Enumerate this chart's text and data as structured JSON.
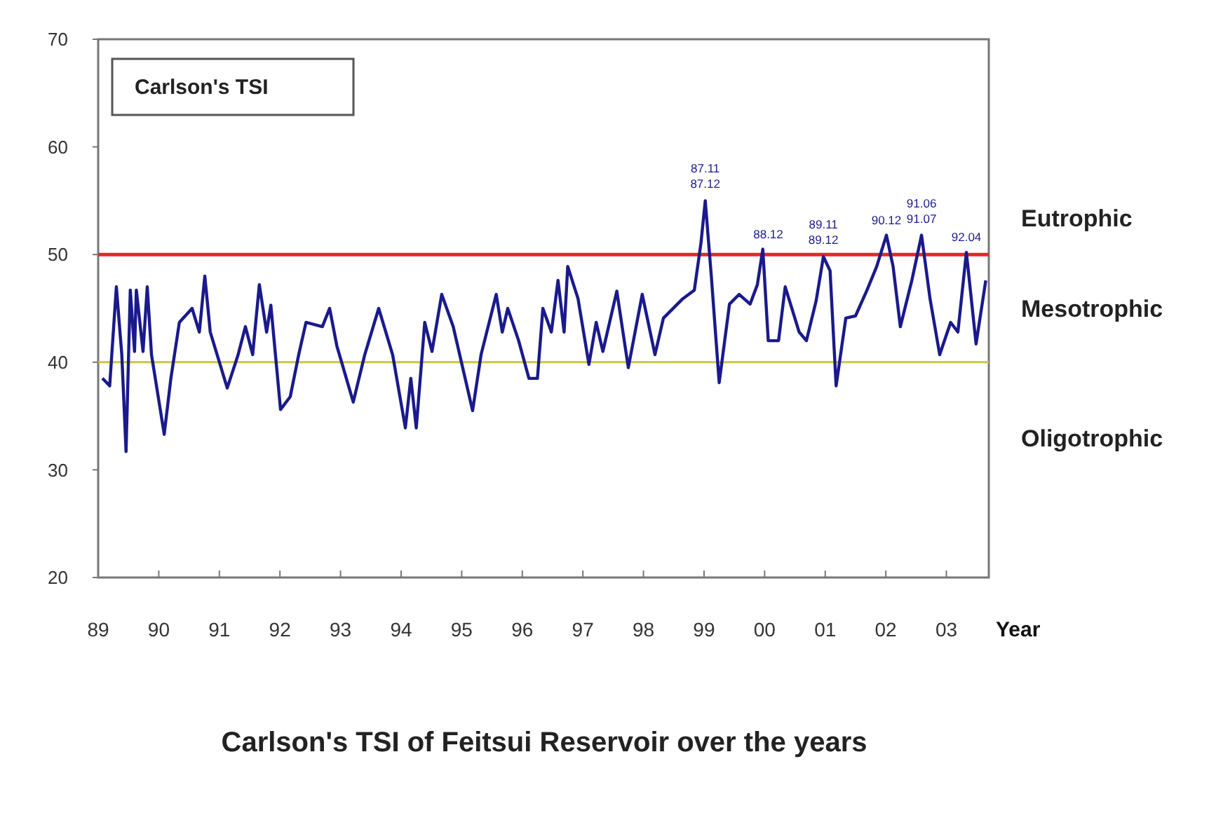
{
  "chart_data": {
    "type": "line",
    "title": "Carlson's TSI of Feitsui Reservoir over the years",
    "subtitle": "Carlson's TSI",
    "xlabel": "Year",
    "xlim": [
      1989,
      2003.7
    ],
    "ylim": [
      20,
      70
    ],
    "xticks": [
      {
        "value": 1989,
        "label": "89"
      },
      {
        "value": 1990,
        "label": "90"
      },
      {
        "value": 1991,
        "label": "91"
      },
      {
        "value": 1992,
        "label": "92"
      },
      {
        "value": 1993,
        "label": "93"
      },
      {
        "value": 1994,
        "label": "94"
      },
      {
        "value": 1995,
        "label": "95"
      },
      {
        "value": 1996,
        "label": "96"
      },
      {
        "value": 1997,
        "label": "97"
      },
      {
        "value": 1998,
        "label": "98"
      },
      {
        "value": 1999,
        "label": "99"
      },
      {
        "value": 2000,
        "label": "00"
      },
      {
        "value": 2001,
        "label": "01"
      },
      {
        "value": 2002,
        "label": "02"
      },
      {
        "value": 2003,
        "label": "03"
      }
    ],
    "yticks": [
      20,
      30,
      40,
      50,
      60,
      70
    ],
    "grid": false,
    "marker": "none",
    "line_style": "solid",
    "series": [
      {
        "color": "#1a1a8c",
        "x": [
          1989.07,
          1989.19,
          1989.3,
          1989.39,
          1989.46,
          1989.53,
          1989.6,
          1989.63,
          1989.74,
          1989.81,
          1989.88,
          1990.09,
          1990.2,
          1990.34,
          1990.55,
          1990.67,
          1990.76,
          1990.85,
          1991.13,
          1991.31,
          1991.43,
          1991.55,
          1991.66,
          1991.78,
          1991.85,
          1992.01,
          1992.17,
          1992.31,
          1992.43,
          1992.7,
          1992.82,
          1992.94,
          1993.21,
          1993.4,
          1993.63,
          1993.86,
          1994.07,
          1994.16,
          1994.25,
          1994.39,
          1994.51,
          1994.67,
          1994.86,
          1995.18,
          1995.32,
          1995.57,
          1995.67,
          1995.76,
          1995.94,
          1996.11,
          1996.25,
          1996.34,
          1996.48,
          1996.59,
          1996.69,
          1996.75,
          1996.92,
          1997.1,
          1997.22,
          1997.33,
          1997.56,
          1997.75,
          1997.98,
          1998.19,
          1998.33,
          1998.65,
          1998.84,
          1998.95,
          1999.02,
          1999.12,
          1999.25,
          1999.42,
          1999.58,
          1999.76,
          1999.88,
          1999.97,
          2000.06,
          2000.23,
          2000.34,
          2000.57,
          2000.69,
          2000.85,
          2000.97,
          2001.08,
          2001.18,
          2001.34,
          2001.5,
          2001.69,
          2001.85,
          2002.01,
          2002.12,
          2002.24,
          2002.43,
          2002.59,
          2002.73,
          2002.89,
          2003.07,
          2003.19,
          2003.33,
          2003.49,
          2003.65
        ],
        "values": [
          38.5,
          37.8,
          47,
          40.7,
          31.7,
          46.7,
          41,
          46.7,
          41,
          47,
          40.7,
          33.3,
          38.5,
          43.7,
          45,
          42.8,
          48,
          42.8,
          37.6,
          40.7,
          43.3,
          40.7,
          47.2,
          42.8,
          45.3,
          35.6,
          36.8,
          40.7,
          43.7,
          43.3,
          45,
          41.5,
          36.3,
          40.7,
          45,
          40.7,
          33.9,
          38.5,
          33.9,
          43.7,
          41,
          46.3,
          43.3,
          35.5,
          40.7,
          46.3,
          42.8,
          45,
          42,
          38.5,
          38.5,
          45,
          42.8,
          47.6,
          42.8,
          48.9,
          45.9,
          39.8,
          43.7,
          41,
          46.6,
          39.5,
          46.3,
          40.7,
          44.1,
          45.9,
          46.7,
          51.1,
          55,
          48,
          38.1,
          45.4,
          46.3,
          45.4,
          47.2,
          50.5,
          42,
          42,
          47,
          42.8,
          42,
          45.7,
          49.8,
          48.5,
          37.8,
          44.1,
          44.3,
          46.7,
          48.9,
          51.8,
          48.9,
          43.3,
          47.6,
          51.8,
          45.9,
          40.7,
          43.7,
          42.8,
          50.2,
          41.7,
          47.6
        ]
      }
    ],
    "ref_lines": [
      {
        "axis": "y",
        "value": 50,
        "color": "#e8262b"
      },
      {
        "axis": "y",
        "value": 40,
        "color": "#c8c83c"
      }
    ],
    "annotations": [
      {
        "text": "87.11\n87.12",
        "x": 1999.02,
        "y": 55
      },
      {
        "text": "88.12",
        "x": 2000.06,
        "y": 50.5
      },
      {
        "text": "89.11\n89.12",
        "x": 2000.97,
        "y": 49.8
      },
      {
        "text": "90.12",
        "x": 2002.01,
        "y": 51.8
      },
      {
        "text": "91.06\n91.07",
        "x": 2002.59,
        "y": 51.8
      },
      {
        "text": "92.04",
        "x": 2003.33,
        "y": 50.2
      },
      "Eutrophic",
      "Mesotrophic",
      "Oligotrophic"
    ]
  }
}
